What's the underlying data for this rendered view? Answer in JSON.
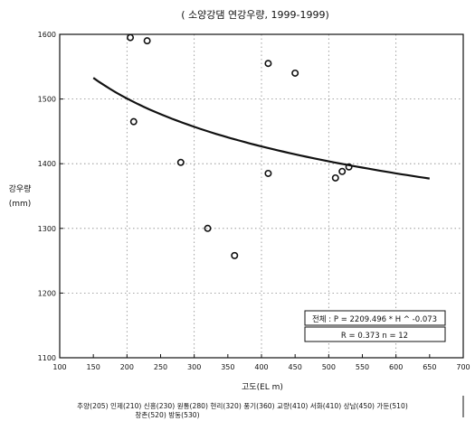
{
  "chart_data": {
    "type": "scatter",
    "title": "( 소양강댐   연강우량, 1999-1999)",
    "xlabel": "고도(EL m)",
    "ylabel_line1": "강우량",
    "ylabel_line2": "(mm)",
    "xlim": [
      100,
      700
    ],
    "ylim": [
      1100,
      1600
    ],
    "x_ticks": [
      100,
      150,
      200,
      250,
      300,
      350,
      400,
      450,
      500,
      550,
      600,
      650,
      700
    ],
    "x_tick_labels": [
      "100",
      "150",
      "200",
      "250",
      "300",
      "350",
      "400",
      "450",
      "500",
      "550",
      "600",
      "650",
      "700"
    ],
    "y_ticks": [
      1100,
      1200,
      1300,
      1400,
      1500,
      1600
    ],
    "y_tick_labels": [
      "1100",
      "1200",
      "1300",
      "1400",
      "1500",
      "1600"
    ],
    "grid": true,
    "points": [
      {
        "x": 205,
        "y": 1595
      },
      {
        "x": 210,
        "y": 1465
      },
      {
        "x": 230,
        "y": 1590
      },
      {
        "x": 280,
        "y": 1402
      },
      {
        "x": 320,
        "y": 1300
      },
      {
        "x": 360,
        "y": 1258
      },
      {
        "x": 410,
        "y": 1555
      },
      {
        "x": 410,
        "y": 1385
      },
      {
        "x": 450,
        "y": 1540
      },
      {
        "x": 510,
        "y": 1378
      },
      {
        "x": 520,
        "y": 1388
      },
      {
        "x": 530,
        "y": 1395
      }
    ],
    "fit": {
      "a": 2209.496,
      "b": -0.073,
      "x_range": [
        150,
        650
      ]
    },
    "annotation_line1": "전체 : P = 2209.496 * H ^ -0.073",
    "annotation_line2": "R = 0.373    n = 12",
    "stations_line1": "추양(205) 인제(210) 신흥(230) 원통(280) 현리(320) 풍기(360) 교량(410) 서화(410) 상남(450) 가둔(510)",
    "stations_line2": "창촌(520) 방동(530)",
    "colors": {
      "axis": "#111111",
      "grid": "#888888",
      "marker": "#111111",
      "curve": "#111111"
    }
  }
}
